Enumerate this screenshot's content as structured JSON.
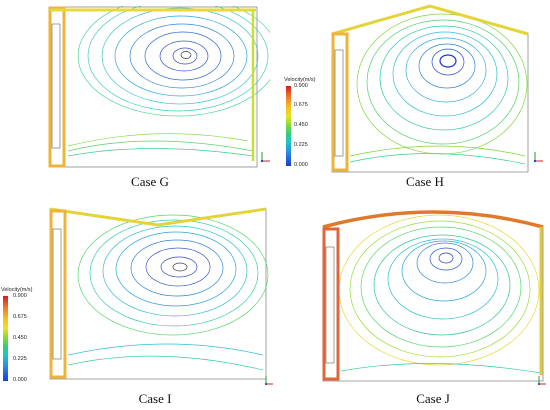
{
  "colorbar": {
    "title": "Velocity(m/s)",
    "ticks": [
      "0.900",
      "0.675",
      "0.450",
      "0.225",
      "0.000"
    ]
  },
  "panels": [
    {
      "id": "G",
      "caption": "Case G",
      "has_colorbar": false
    },
    {
      "id": "H",
      "caption": "Case H",
      "has_colorbar": true
    },
    {
      "id": "I",
      "caption": "Case I",
      "has_colorbar": true
    },
    {
      "id": "J",
      "caption": "Case J",
      "has_colorbar": false
    }
  ]
}
